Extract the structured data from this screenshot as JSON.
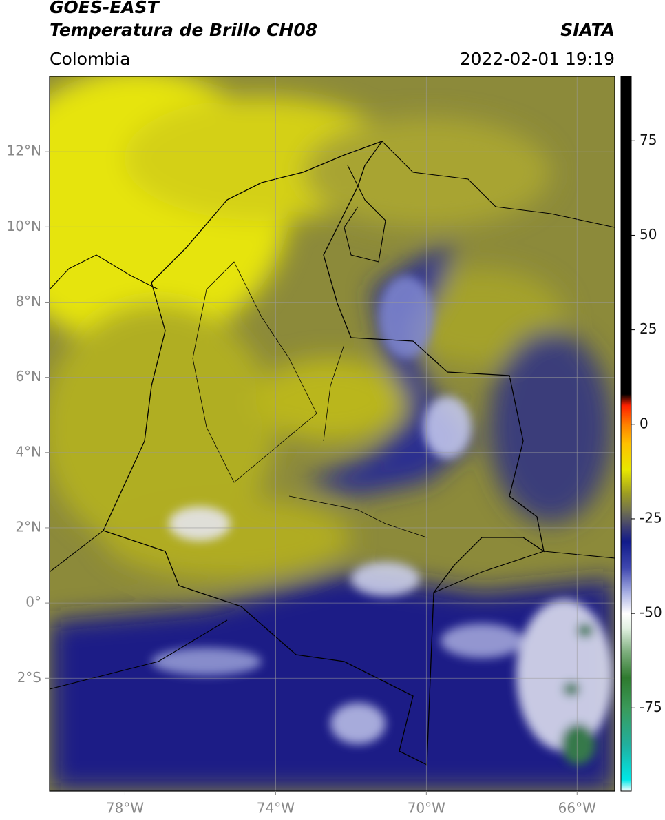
{
  "header": {
    "title": "GOES-EAST",
    "subtitle": "Temperatura de Brillo CH08",
    "source": "SIATA",
    "region": "Colombia",
    "datetime": "2022-02-01 19:19"
  },
  "map": {
    "lonlim": [
      -80,
      -65
    ],
    "latlim": [
      -5,
      14
    ],
    "xticks": [
      {
        "value": -78,
        "label": "78°W"
      },
      {
        "value": -74,
        "label": "74°W"
      },
      {
        "value": -70,
        "label": "70°W"
      },
      {
        "value": -66,
        "label": "66°W"
      }
    ],
    "yticks": [
      {
        "value": 12,
        "label": "12°N"
      },
      {
        "value": 10,
        "label": "10°N"
      },
      {
        "value": 8,
        "label": "8°N"
      },
      {
        "value": 6,
        "label": "6°N"
      },
      {
        "value": 4,
        "label": "4°N"
      },
      {
        "value": 2,
        "label": "2°N"
      },
      {
        "value": 0,
        "label": "0°"
      },
      {
        "value": -2,
        "label": "2°S"
      }
    ],
    "grid": true,
    "grid_color": "#9a9a9a"
  },
  "colorbar": {
    "clim": [
      -97,
      92
    ],
    "ticks": [
      75,
      50,
      25,
      0,
      -25,
      -50,
      -75
    ],
    "stops": [
      {
        "value": -97,
        "color": "#ffffff"
      },
      {
        "value": -94,
        "color": "#00e8e8"
      },
      {
        "value": -85,
        "color": "#20b0a0"
      },
      {
        "value": -75,
        "color": "#3a9a5a"
      },
      {
        "value": -67,
        "color": "#2e7a2e"
      },
      {
        "value": -60,
        "color": "#80b080"
      },
      {
        "value": -54,
        "color": "#e0f0e0"
      },
      {
        "value": -50,
        "color": "#ffffff"
      },
      {
        "value": -44,
        "color": "#a0a8e0"
      },
      {
        "value": -38,
        "color": "#4048b0"
      },
      {
        "value": -31,
        "color": "#101a8a"
      },
      {
        "value": -27,
        "color": "#404070"
      },
      {
        "value": -23,
        "color": "#707050"
      },
      {
        "value": -18,
        "color": "#a0a020"
      },
      {
        "value": -12,
        "color": "#e8e800"
      },
      {
        "value": -5,
        "color": "#ffc000"
      },
      {
        "value": 0,
        "color": "#ff8000"
      },
      {
        "value": 5,
        "color": "#ff2000"
      },
      {
        "value": 8,
        "color": "#000000"
      }
    ]
  }
}
